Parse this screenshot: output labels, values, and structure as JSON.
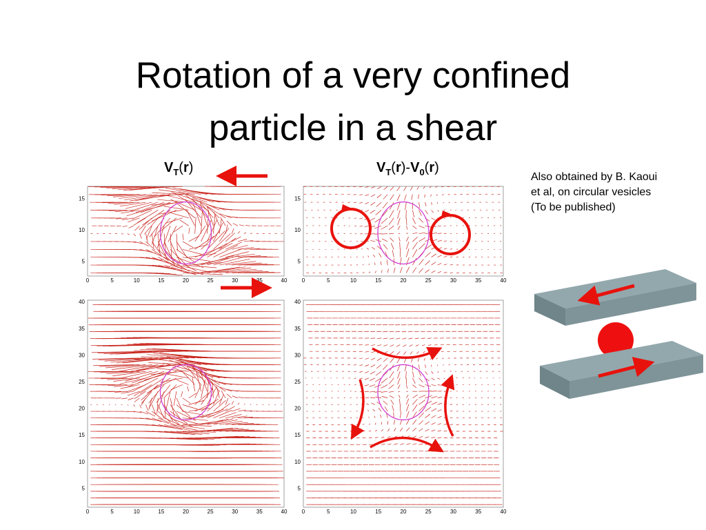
{
  "title_lines": [
    "Rotation of a very confined",
    "particle in a shear"
  ],
  "left_label": [
    "V",
    "T",
    "(",
    "r",
    ")"
  ],
  "right_label": [
    "V",
    "T",
    "(",
    "r",
    ")-",
    "V",
    "0",
    "(",
    "r",
    ")"
  ],
  "note_lines": [
    "Also obtained by B. Kaoui",
    "et al, on circular vesicles",
    "(To be published)"
  ],
  "panels": [
    {
      "xticks": [
        0,
        5,
        10,
        15,
        20,
        25,
        30,
        35,
        40
      ],
      "yticks": [
        5,
        10,
        15
      ]
    },
    {
      "xticks": [
        0,
        5,
        10,
        15,
        20,
        25,
        30,
        35,
        40
      ],
      "yticks": [
        5,
        10,
        15
      ]
    },
    {
      "xticks": [
        0,
        5,
        10,
        15,
        20,
        25,
        30,
        35,
        40
      ],
      "yticks": [
        5,
        10,
        15,
        20,
        25,
        30,
        35,
        40
      ]
    },
    {
      "xticks": [
        0,
        5,
        10,
        15,
        20,
        25,
        30,
        35,
        40
      ],
      "yticks": [
        5,
        10,
        15,
        20,
        25,
        30,
        35,
        40
      ]
    }
  ]
}
